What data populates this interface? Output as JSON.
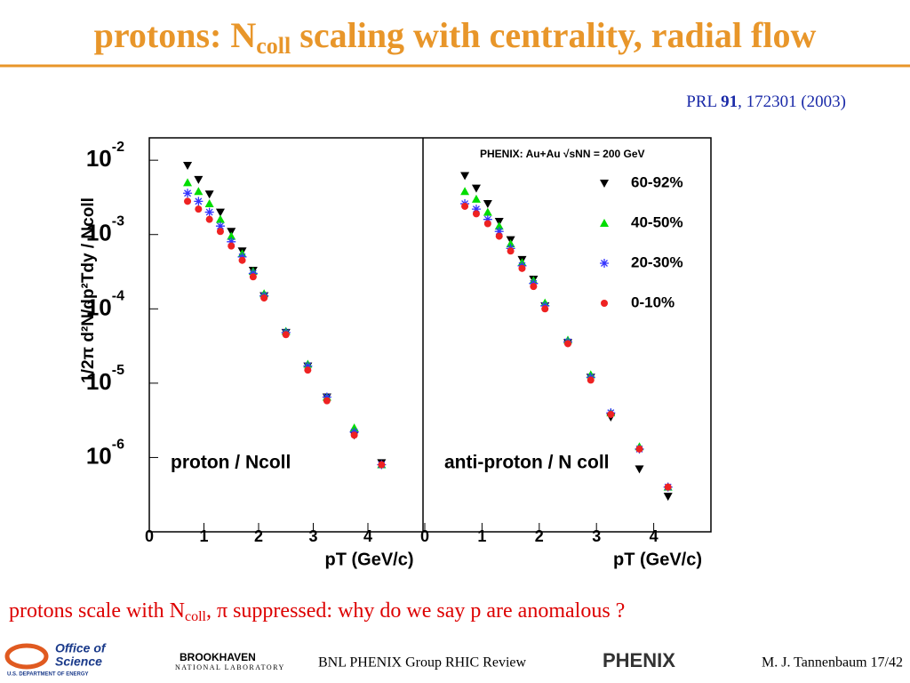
{
  "slide": {
    "title_parts": [
      "protons: N",
      "coll",
      " scaling with centrality, radial flow"
    ],
    "citation_parts": [
      "PRL ",
      "91",
      ", 172301 (2003)"
    ],
    "comment_parts": [
      "protons scale with N",
      "coll",
      ", π suppressed: why do we say p are anomalous ?"
    ],
    "footer": {
      "doe_1": "Office of",
      "doe_2": "Science",
      "doe_3": "U.S. DEPARTMENT OF ENERGY",
      "bnl_1": "BROOKHAVEN",
      "bnl_2": "NATIONAL LABORATORY",
      "group": "BNL PHENIX Group  RHIC Review",
      "phenix": "PHENIX",
      "author": "M. J. Tannenbaum  17/42"
    }
  },
  "chart_data": [
    {
      "type": "scatter",
      "log_y": true,
      "ylabel": "1/2π d²N/dp²Tdy / Ncoll",
      "xlabel": "pT (GeV/c)",
      "panel_label": "proton / Ncoll",
      "xlim": [
        0,
        5
      ],
      "xticks": [
        0,
        1,
        2,
        3,
        4
      ],
      "ylim": [
        1e-07,
        0.02
      ],
      "yticks": [
        {
          "value": 0.01,
          "label": "10",
          "exponent": "-2"
        },
        {
          "value": 0.001,
          "label": "10",
          "exponent": "-3"
        },
        {
          "value": 0.0001,
          "label": "10",
          "exponent": "-4"
        },
        {
          "value": 1e-05,
          "label": "10",
          "exponent": "-5"
        },
        {
          "value": 1e-06,
          "label": "10",
          "exponent": "-6"
        }
      ],
      "x": [
        0.7,
        0.9,
        1.1,
        1.3,
        1.5,
        1.7,
        1.9,
        2.1,
        2.5,
        2.9,
        3.25,
        3.75,
        4.25
      ],
      "series": [
        {
          "name": "60-92%",
          "color": "#000000",
          "marker": "triangle-down",
          "values": [
            0.0085,
            0.0055,
            0.0035,
            0.002,
            0.0011,
            0.0006,
            0.00033,
            0.00015,
            4.8e-05,
            1.7e-05,
            6.5e-06,
            2e-06,
            8.5e-07
          ]
        },
        {
          "name": "40-50%",
          "color": "#00dd00",
          "marker": "triangle-up",
          "values": [
            0.005,
            0.0038,
            0.0026,
            0.0016,
            0.00095,
            0.00055,
            0.00032,
            0.00016,
            5e-05,
            1.8e-05,
            6.5e-06,
            2.5e-06,
            8e-07
          ]
        },
        {
          "name": "20-30%",
          "color": "#3333ff",
          "marker": "asterisk",
          "values": [
            0.0036,
            0.0028,
            0.002,
            0.0013,
            0.0008,
            0.0005,
            0.0003,
            0.00015,
            4.8e-05,
            1.7e-05,
            6.5e-06,
            2.2e-06,
            8e-07
          ]
        },
        {
          "name": "0-10%",
          "color": "#ee2222",
          "marker": "circle",
          "values": [
            0.0028,
            0.0022,
            0.0016,
            0.0011,
            0.0007,
            0.00045,
            0.00027,
            0.00014,
            4.5e-05,
            1.5e-05,
            5.8e-06,
            2e-06,
            8e-07
          ]
        }
      ]
    },
    {
      "type": "scatter",
      "log_y": true,
      "xlabel": "pT (GeV/c)",
      "panel_label": "anti-proton / N coll",
      "legend_title": "PHENIX: Au+Au √sNN = 200 GeV",
      "legend": "upper right",
      "xlim": [
        0,
        5
      ],
      "xticks": [
        0,
        1,
        2,
        3,
        4
      ],
      "ylim": [
        1e-07,
        0.02
      ],
      "x": [
        0.7,
        0.9,
        1.1,
        1.3,
        1.5,
        1.7,
        1.9,
        2.1,
        2.5,
        2.9,
        3.25,
        3.75,
        4.25
      ],
      "series": [
        {
          "name": "60-92%",
          "color": "#000000",
          "marker": "triangle-down",
          "values": [
            0.0062,
            0.0042,
            0.0026,
            0.0015,
            0.00085,
            0.00046,
            0.00025,
            0.00011,
            3.5e-05,
            1.2e-05,
            3.5e-06,
            7e-07,
            3e-07
          ]
        },
        {
          "name": "40-50%",
          "color": "#00dd00",
          "marker": "triangle-up",
          "values": [
            0.0038,
            0.003,
            0.002,
            0.0013,
            0.00075,
            0.00042,
            0.00024,
            0.00012,
            3.8e-05,
            1.3e-05,
            4e-06,
            1.4e-06,
            4e-07
          ]
        },
        {
          "name": "20-30%",
          "color": "#3333ff",
          "marker": "asterisk",
          "values": [
            0.0026,
            0.0022,
            0.0016,
            0.0011,
            0.00065,
            0.00038,
            0.00022,
            0.00011,
            3.6e-05,
            1.2e-05,
            4e-06,
            1.3e-06,
            4e-07
          ]
        },
        {
          "name": "0-10%",
          "color": "#ee2222",
          "marker": "circle",
          "values": [
            0.0024,
            0.0019,
            0.0014,
            0.00095,
            0.0006,
            0.00035,
            0.0002,
            0.0001,
            3.4e-05,
            1.1e-05,
            3.8e-06,
            1.3e-06,
            4e-07
          ]
        }
      ]
    }
  ]
}
